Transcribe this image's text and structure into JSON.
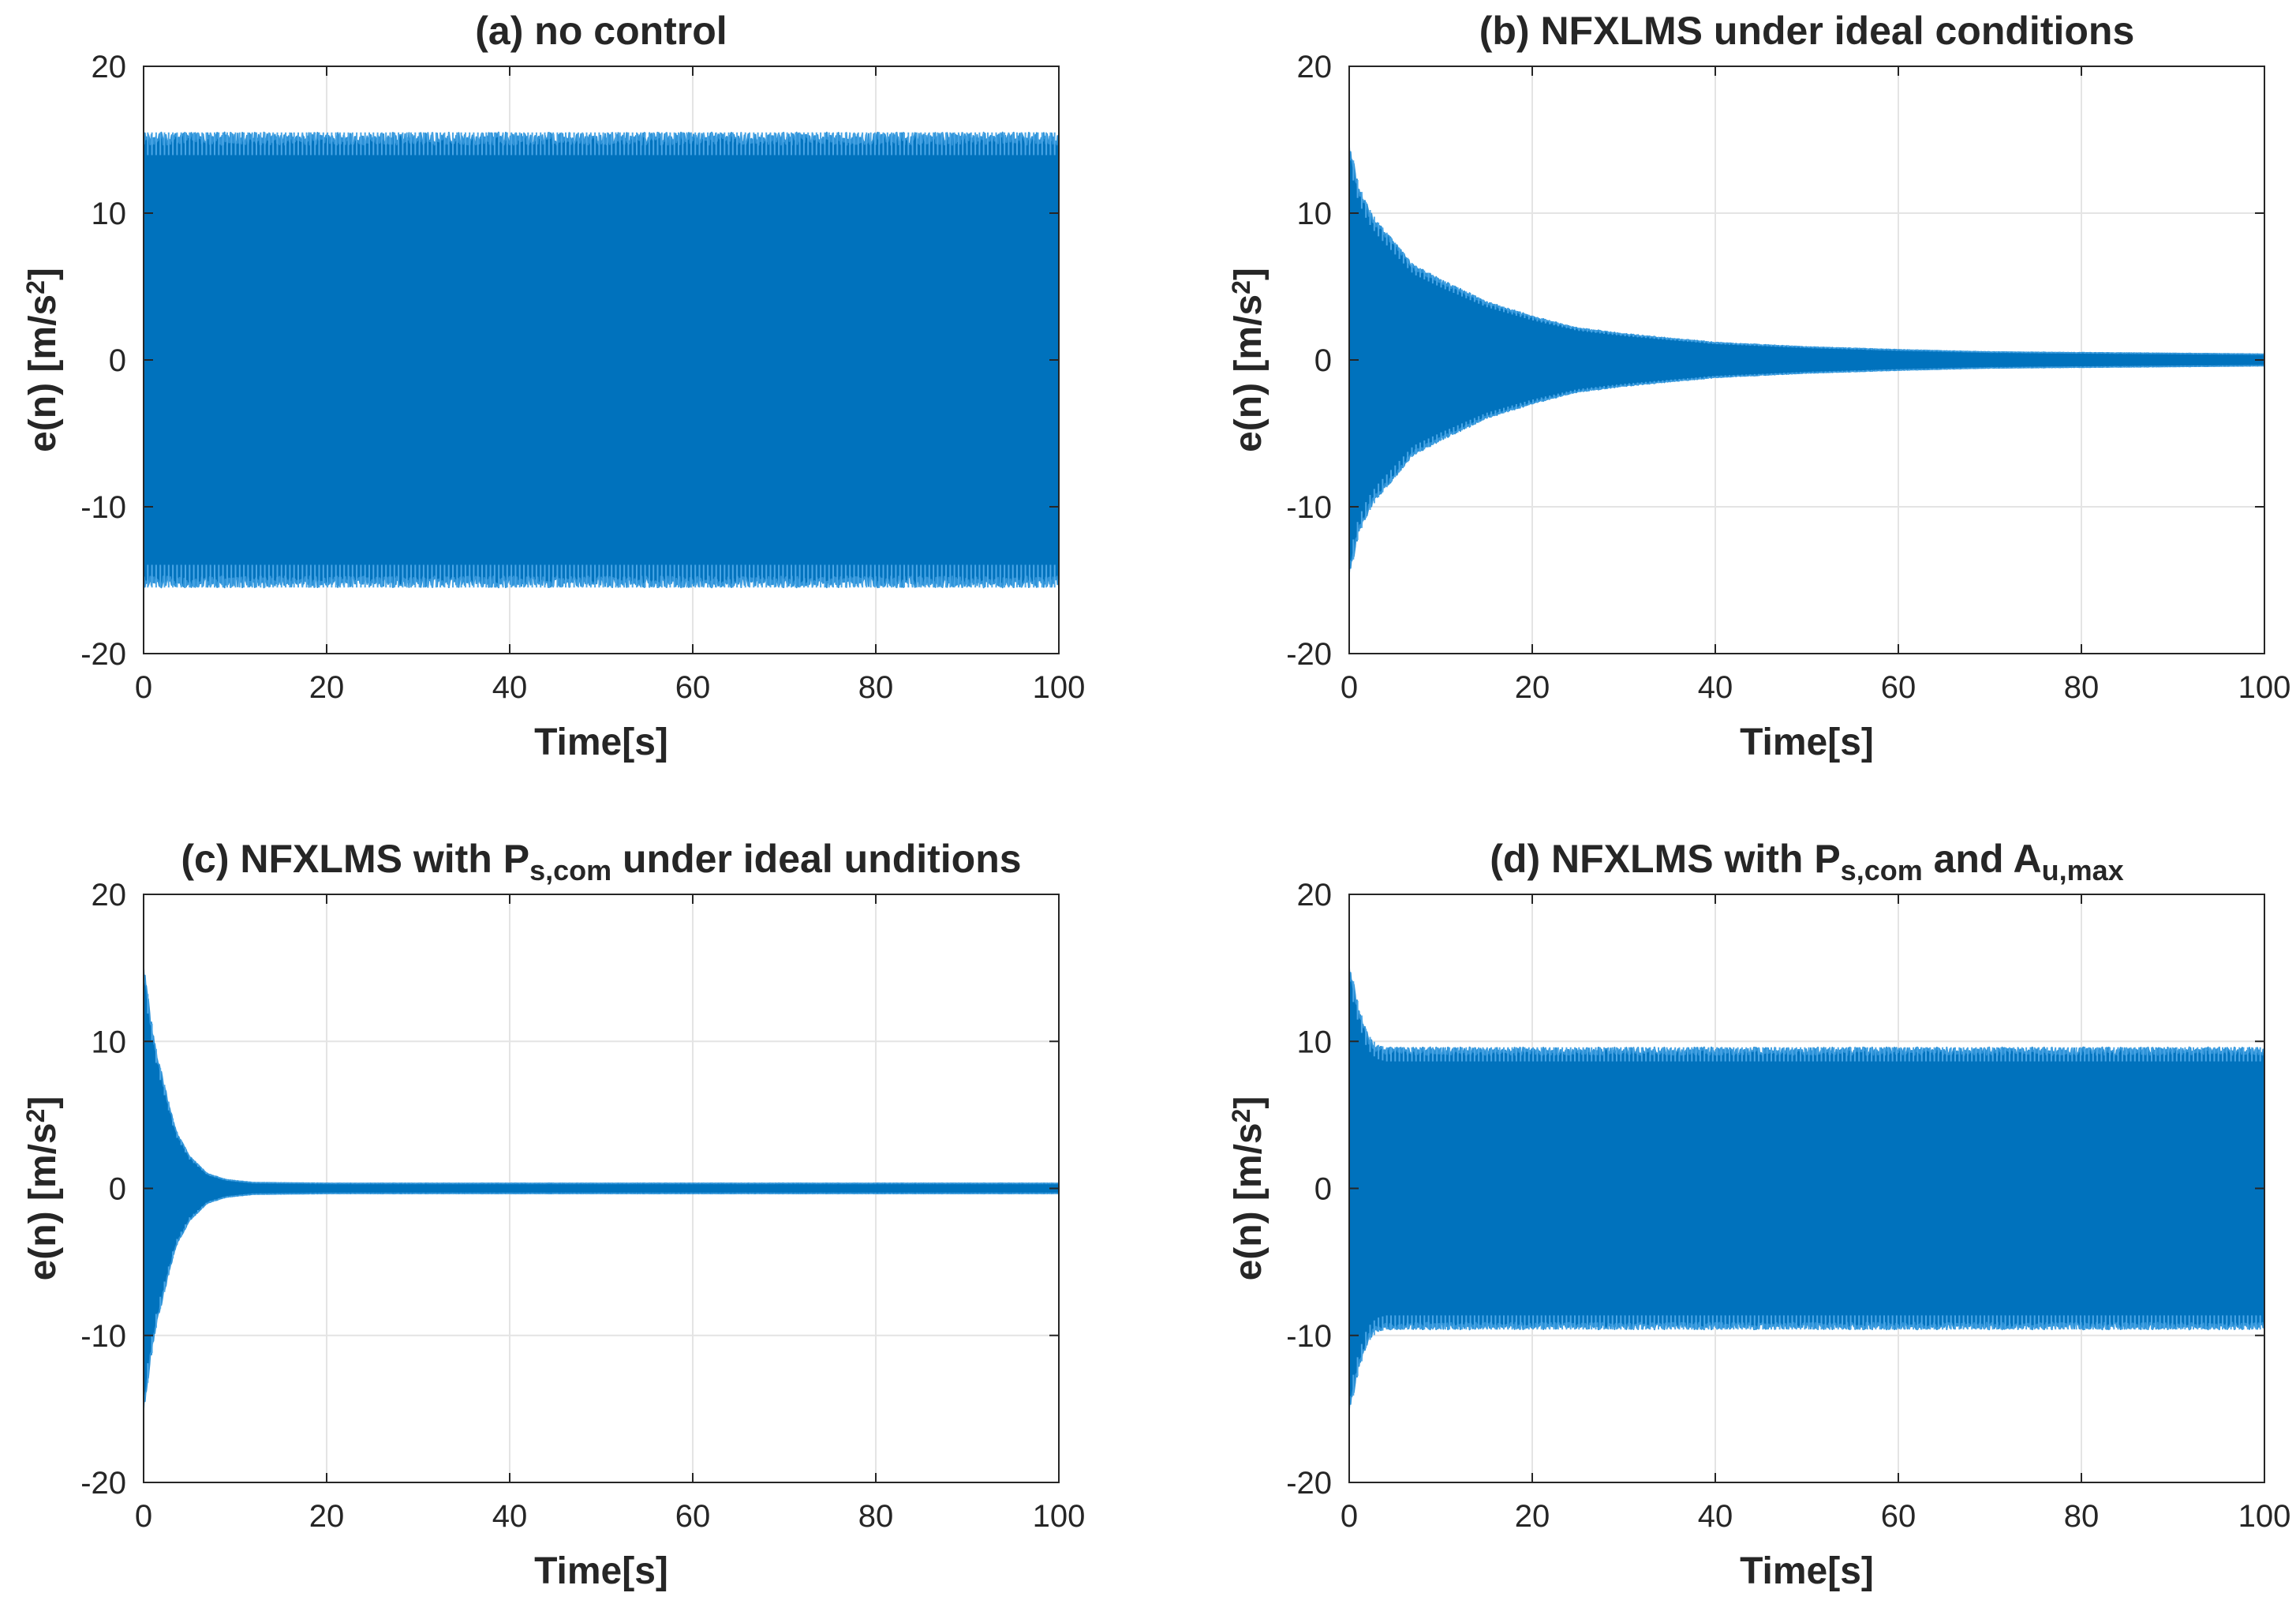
{
  "chart_data": [
    {
      "id": "a",
      "type": "line",
      "title": "(a) no control",
      "title_parts": [
        {
          "text": "(a) no control",
          "style": "normal"
        }
      ],
      "xlabel": "Time[s]",
      "ylabel_parts": [
        {
          "text": "e(n) [m/s",
          "style": "normal"
        },
        {
          "text": "2",
          "style": "sup"
        },
        {
          "text": "]",
          "style": "normal"
        }
      ],
      "xlim": [
        0,
        100
      ],
      "ylim": [
        -20,
        20
      ],
      "xticks": [
        0,
        20,
        40,
        60,
        80,
        100
      ],
      "yticks": [
        -20,
        -10,
        0,
        10,
        20
      ],
      "grid": true,
      "series_color": "#0072BD",
      "envelope": {
        "x": [
          0,
          0.5,
          1,
          2,
          3,
          5,
          10,
          20,
          30,
          40,
          50,
          60,
          70,
          80,
          90,
          100
        ],
        "amplitude": [
          15.5,
          15.5,
          15.5,
          15.5,
          15.5,
          15.5,
          15.5,
          15.5,
          15.5,
          15.5,
          15.5,
          15.5,
          15.5,
          15.5,
          15.5,
          15.5
        ]
      }
    },
    {
      "id": "b",
      "type": "line",
      "title": "(b) NFXLMS under ideal conditions",
      "title_parts": [
        {
          "text": "(b) NFXLMS under ideal conditions",
          "style": "normal"
        }
      ],
      "xlabel": "Time[s]",
      "ylabel_parts": [
        {
          "text": "e(n) [m/s",
          "style": "normal"
        },
        {
          "text": "2",
          "style": "sup"
        },
        {
          "text": "]",
          "style": "normal"
        }
      ],
      "xlim": [
        0,
        100
      ],
      "ylim": [
        -20,
        20
      ],
      "xticks": [
        0,
        20,
        40,
        60,
        80,
        100
      ],
      "yticks": [
        -20,
        -10,
        0,
        10,
        20
      ],
      "grid": true,
      "series_color": "#0072BD",
      "envelope": {
        "x": [
          0,
          0.5,
          1,
          2,
          3,
          5,
          7,
          10,
          15,
          20,
          25,
          30,
          40,
          50,
          60,
          70,
          80,
          90,
          100
        ],
        "amplitude": [
          14.5,
          13.5,
          12,
          10.5,
          9.5,
          8,
          6.5,
          5.5,
          4,
          3,
          2.2,
          1.8,
          1.2,
          0.9,
          0.7,
          0.55,
          0.5,
          0.45,
          0.4
        ]
      }
    },
    {
      "id": "c",
      "type": "line",
      "title": "(c) NFXLMS with Ps,com under ideal unditions",
      "title_parts": [
        {
          "text": "(c) NFXLMS with P",
          "style": "normal"
        },
        {
          "text": "s,com",
          "style": "sub"
        },
        {
          "text": " under ideal unditions",
          "style": "normal"
        }
      ],
      "xlabel": "Time[s]",
      "ylabel_parts": [
        {
          "text": "e(n) [m/s",
          "style": "normal"
        },
        {
          "text": "2",
          "style": "sup"
        },
        {
          "text": "]",
          "style": "normal"
        }
      ],
      "xlim": [
        0,
        100
      ],
      "ylim": [
        -20,
        20
      ],
      "xticks": [
        0,
        20,
        40,
        60,
        80,
        100
      ],
      "yticks": [
        -20,
        -10,
        0,
        10,
        20
      ],
      "grid": true,
      "series_color": "#0072BD",
      "envelope": {
        "x": [
          0,
          0.3,
          0.7,
          1.5,
          2.5,
          3.5,
          5,
          7,
          9,
          12,
          20,
          40,
          60,
          80,
          100
        ],
        "amplitude": [
          15,
          14,
          12,
          9,
          6.5,
          4,
          2.2,
          1,
          0.6,
          0.4,
          0.35,
          0.35,
          0.35,
          0.35,
          0.35
        ]
      }
    },
    {
      "id": "d",
      "type": "line",
      "title": "(d) NFXLMS with Ps,com and Au,max",
      "title_parts": [
        {
          "text": "(d) NFXLMS with P",
          "style": "normal"
        },
        {
          "text": "s,com",
          "style": "sub"
        },
        {
          "text": " and A",
          "style": "normal"
        },
        {
          "text": "u,max",
          "style": "sub"
        },
        {
          "text": "",
          "style": "normal"
        }
      ],
      "xlabel": "Time[s]",
      "ylabel_parts": [
        {
          "text": "e(n) [m/s",
          "style": "normal"
        },
        {
          "text": "2",
          "style": "sup"
        },
        {
          "text": "]",
          "style": "normal"
        }
      ],
      "xlim": [
        0,
        100
      ],
      "ylim": [
        -20,
        20
      ],
      "xticks": [
        0,
        20,
        40,
        60,
        80,
        100
      ],
      "yticks": [
        -20,
        -10,
        0,
        10,
        20
      ],
      "grid": true,
      "series_color": "#0072BD",
      "envelope": {
        "x": [
          0,
          0.5,
          1,
          1.5,
          2,
          3,
          4,
          6,
          10,
          20,
          40,
          60,
          80,
          100
        ],
        "amplitude": [
          15,
          14,
          12.5,
          11.5,
          10.5,
          9.8,
          9.6,
          9.6,
          9.6,
          9.6,
          9.6,
          9.6,
          9.6,
          9.6
        ]
      }
    }
  ]
}
